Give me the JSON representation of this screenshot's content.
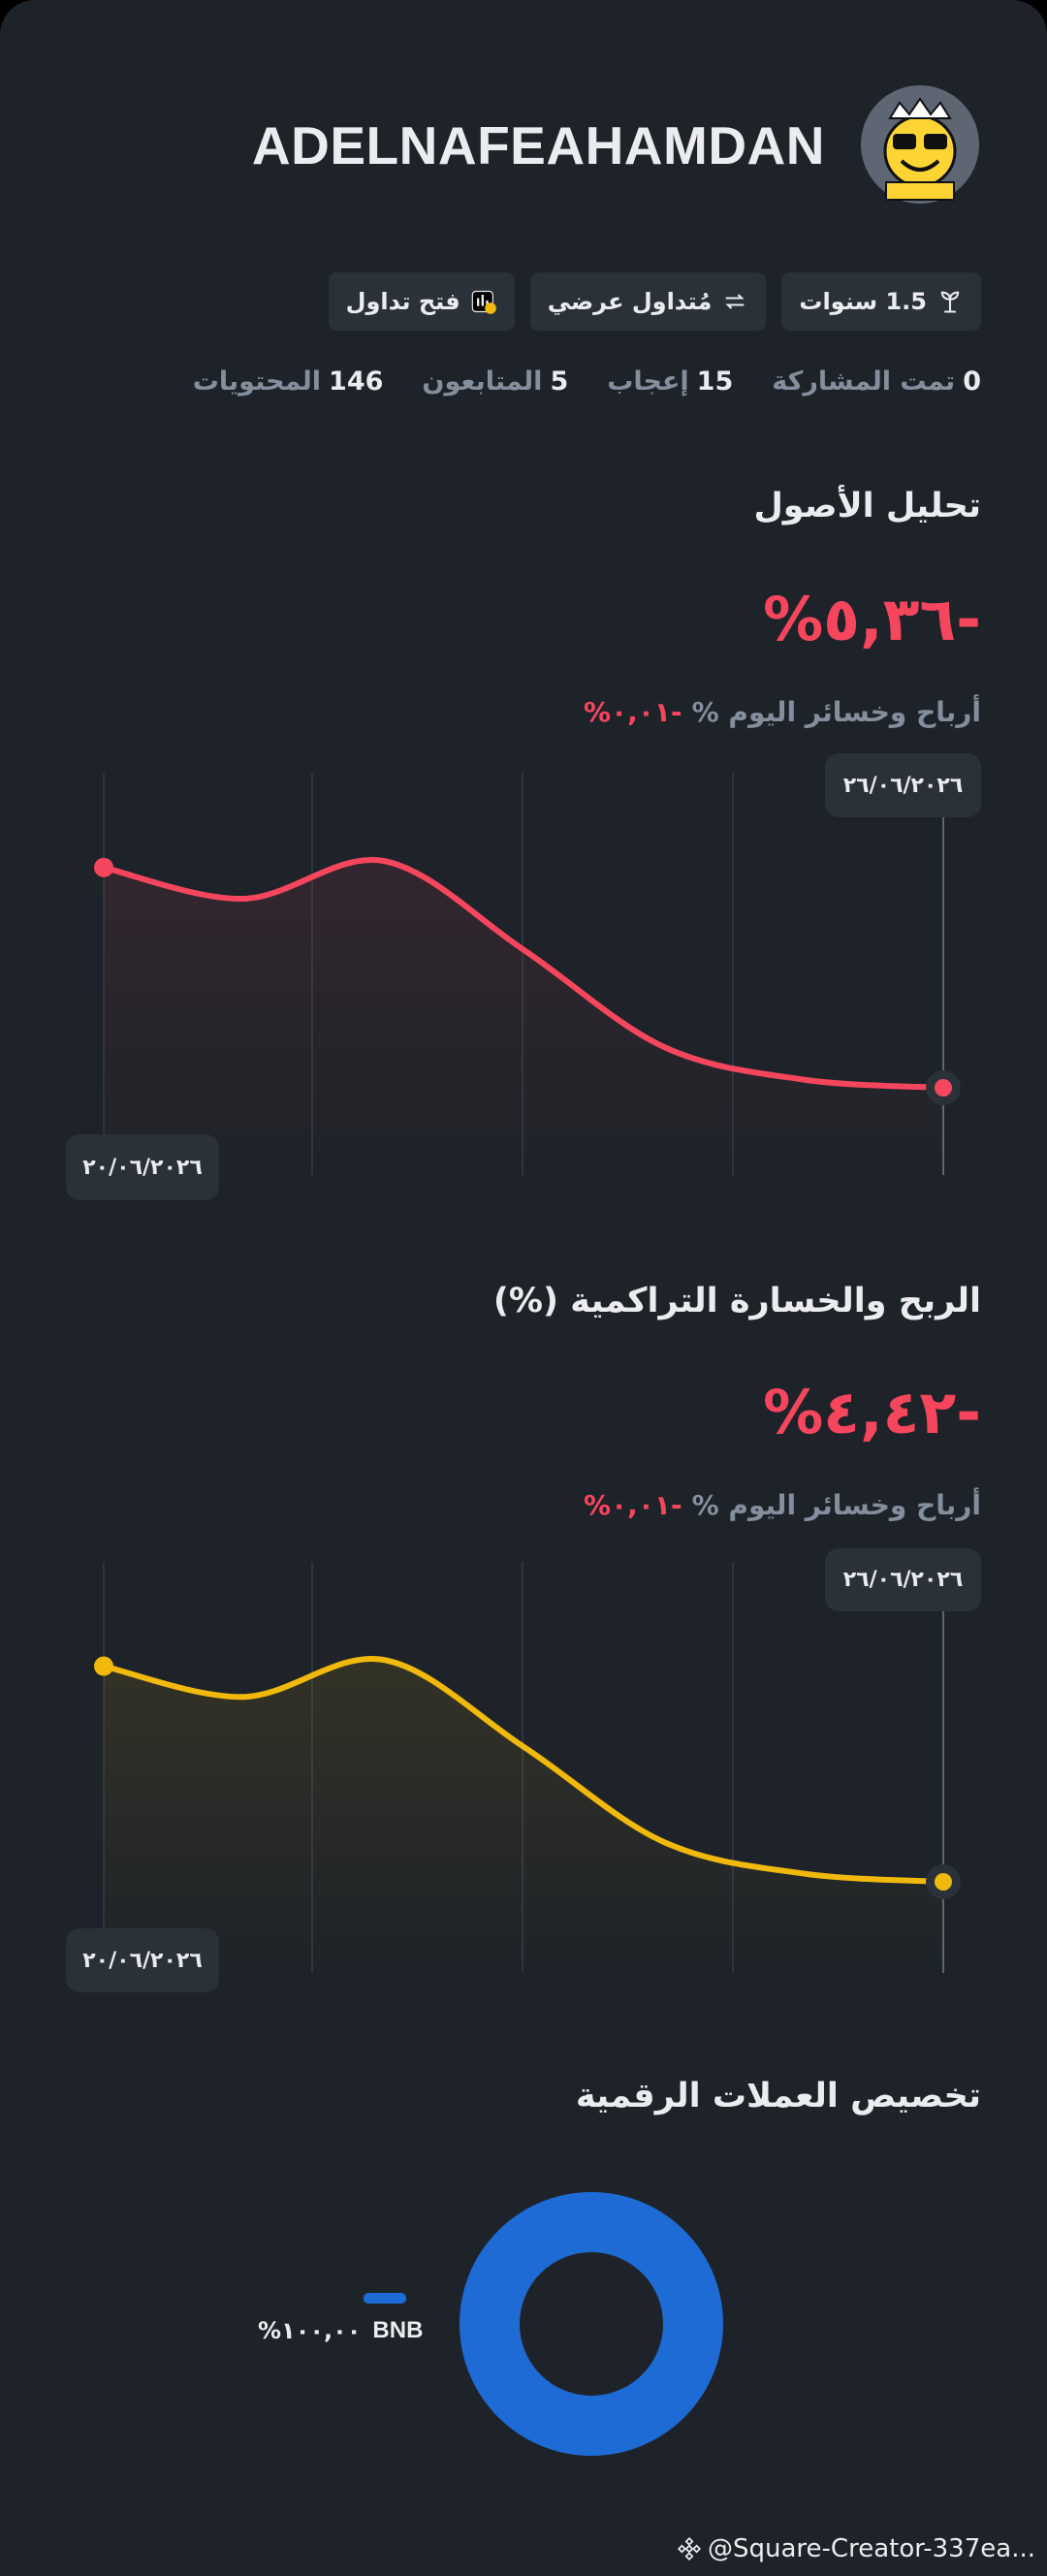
{
  "profile": {
    "name": "ADELNAFEAHAMDAN",
    "badges": [
      "1.5 سنوات",
      "مُتداول عرضي",
      "فتح تداول"
    ],
    "stats": [
      {
        "value": "0",
        "label": "تمت المشاركة"
      },
      {
        "value": "15",
        "label": "إعجاب"
      },
      {
        "value": "5",
        "label": "المتابعون"
      },
      {
        "value": "146",
        "label": "المحتويات"
      }
    ]
  },
  "asset_analysis": {
    "title": "تحليل الأصول",
    "value_text": "%٥,٣٦-",
    "today_label": "أرباح وخسائر اليوم %",
    "today_value": "%٠,٠١-",
    "end_date": "٢٦/٠٦/٢٠٢٦",
    "start_date": "٢٠/٠٦/٢٠٢٦",
    "chart": {
      "type": "line",
      "color": "#f6465d",
      "values": [
        0,
        -0.76,
        0.16,
        -2.0,
        -4.36,
        -5.16,
        -5.36
      ]
    }
  },
  "cumulative_pnl": {
    "title": "الربح والخسارة التراكمية (%)",
    "value_text": "%٤,٤٢-",
    "today_label": "أرباح وخسائر اليوم %",
    "today_value": "%٠,٠١-",
    "end_date": "٢٦/٠٦/٢٠٢٦",
    "start_date": "٢٠/٠٦/٢٠٢٦",
    "chart": {
      "type": "line",
      "color": "#f0b90b",
      "values": [
        0,
        -0.63,
        0.13,
        -1.65,
        -3.6,
        -4.25,
        -4.42
      ]
    }
  },
  "allocation": {
    "title": "تخصيص العملات الرقمية",
    "chart": {
      "type": "donut",
      "categories": [
        "BNB"
      ],
      "values": [
        100
      ],
      "value_labels": [
        "%١٠٠,٠٠"
      ],
      "color": "#1e6bd6"
    }
  },
  "footer": {
    "handle": "@Square-Creator-337ea..."
  }
}
